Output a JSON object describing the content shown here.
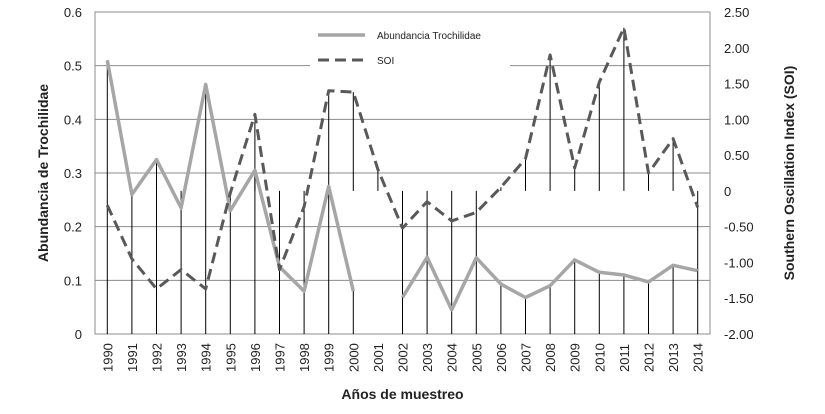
{
  "chart_data": {
    "type": "line",
    "x": [
      "1990",
      "1991",
      "1992",
      "1993",
      "1994",
      "1995",
      "1996",
      "1997",
      "1998",
      "1999",
      "2000",
      "2001",
      "2002",
      "2003",
      "2004",
      "2005",
      "2006",
      "2007",
      "2008",
      "2009",
      "2010",
      "2011",
      "2012",
      "2013",
      "2014"
    ],
    "xlabel": "Años de muestreo",
    "ylabel_left": "Abundancia de Trochilidae",
    "ylabel_right": "Southern Oscillation Index (SOI)",
    "ylim_left": [
      0,
      0.6
    ],
    "yticks_left": [
      "0",
      "0.1",
      "0.2",
      "0.3",
      "0.4",
      "0.5",
      "0.6"
    ],
    "ylim_right": [
      -2.0,
      2.5
    ],
    "yticks_right": [
      "-2.00",
      "-1.50",
      "-1.00",
      "-0.50",
      "0",
      "0.50",
      "1.00",
      "1.50",
      "2.00",
      "2.50"
    ],
    "grid": true,
    "legend_position": "top-center",
    "series": [
      {
        "name": "Abundancia Trochilidae",
        "axis": "left",
        "style": "solid",
        "color": "#a6a6a6",
        "values": [
          0.51,
          0.26,
          0.325,
          0.235,
          0.465,
          0.23,
          0.305,
          0.125,
          0.08,
          0.275,
          0.08,
          null,
          0.068,
          0.143,
          0.045,
          0.142,
          0.093,
          0.068,
          0.09,
          0.138,
          0.115,
          0.11,
          0.097,
          0.128,
          0.118
        ]
      },
      {
        "name": "SOI",
        "axis": "right",
        "style": "dashed",
        "color": "#595959",
        "values": [
          -0.2,
          -0.95,
          -1.37,
          -1.1,
          -1.37,
          -0.03,
          1.07,
          -1.1,
          -0.22,
          1.4,
          1.38,
          0.3,
          -0.52,
          -0.15,
          -0.42,
          -0.3,
          0.05,
          0.45,
          1.9,
          0.32,
          1.52,
          2.28,
          0.25,
          0.73,
          -0.23
        ]
      }
    ]
  }
}
